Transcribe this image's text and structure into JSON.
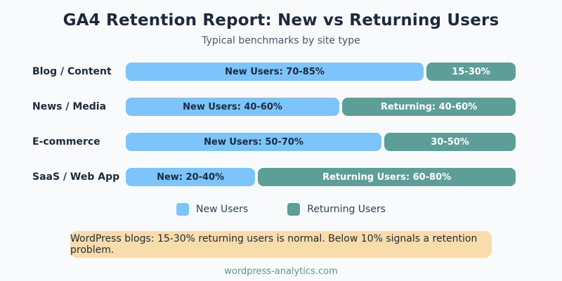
{
  "header": {
    "title": "GA4 Retention Report: New vs Returning Users",
    "subtitle": "Typical benchmarks by site type"
  },
  "colors": {
    "background": "#f8fafc",
    "new_users": "#7cc4fa",
    "returning_users": "#5d9e99",
    "note_background": "#f8dcab",
    "title_text": "#1e293b",
    "bar_text_on_new": "#1b2a41",
    "bar_text_on_returning": "#ffffff",
    "footer_text": "#5f948e"
  },
  "chart_data": {
    "type": "bar",
    "orientation": "horizontal",
    "stacked": true,
    "title": "GA4 Retention Report: New vs Returning Users",
    "subtitle": "Typical benchmarks by site type",
    "categories": [
      "Blog / Content",
      "News / Media",
      "E-commerce",
      "SaaS / Web App"
    ],
    "series": [
      {
        "name": "New Users",
        "ranges_pct": [
          [
            70,
            85
          ],
          [
            40,
            60
          ],
          [
            50,
            70
          ],
          [
            20,
            40
          ]
        ]
      },
      {
        "name": "Returning Users",
        "ranges_pct": [
          [
            15,
            30
          ],
          [
            40,
            60
          ],
          [
            30,
            50
          ],
          [
            60,
            80
          ]
        ]
      }
    ],
    "rows": [
      {
        "category": "Blog / Content",
        "new_label": "New Users: 70-85%",
        "new_width_pct": 76.4,
        "returning_label": "15-30%"
      },
      {
        "category": "News / Media",
        "new_label": "New Users: 40-60%",
        "new_width_pct": 54.8,
        "returning_label": "Returning: 40-60%"
      },
      {
        "category": "E-commerce",
        "new_label": "New Users: 50-70%",
        "new_width_pct": 65.6,
        "returning_label": "30-50%"
      },
      {
        "category": "SaaS / Web App",
        "new_label": "New: 20-40%",
        "new_width_pct": 33.2,
        "returning_label": "Returning Users: 60-80%"
      }
    ],
    "legend": {
      "position": "bottom",
      "items": [
        "New Users",
        "Returning Users"
      ]
    },
    "grid": false,
    "xlim": [
      0,
      100
    ]
  },
  "note": {
    "text": "WordPress blogs: 15-30% returning users is normal. Below 10% signals a retention problem."
  },
  "footer": {
    "text": "wordpress-analytics.com"
  }
}
